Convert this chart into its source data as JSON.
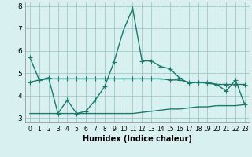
{
  "x": [
    0,
    1,
    2,
    3,
    4,
    5,
    6,
    7,
    8,
    9,
    10,
    11,
    12,
    13,
    14,
    15,
    16,
    17,
    18,
    19,
    20,
    21,
    22,
    23
  ],
  "line1": [
    5.7,
    4.7,
    4.8,
    3.2,
    3.8,
    3.2,
    3.3,
    3.8,
    4.4,
    5.5,
    6.9,
    7.9,
    5.55,
    5.55,
    5.3,
    5.2,
    4.8,
    4.55,
    4.6,
    4.6,
    4.5,
    4.2,
    4.7,
    3.6
  ],
  "line2": [
    4.6,
    4.7,
    4.75,
    4.75,
    4.75,
    4.75,
    4.75,
    4.75,
    4.75,
    4.75,
    4.75,
    4.75,
    4.75,
    4.75,
    4.75,
    4.7,
    4.7,
    4.6,
    4.6,
    4.55,
    4.5,
    4.5,
    4.5,
    4.5
  ],
  "line3": [
    3.2,
    3.2,
    3.2,
    3.2,
    3.2,
    3.2,
    3.2,
    3.2,
    3.2,
    3.2,
    3.2,
    3.2,
    3.25,
    3.3,
    3.35,
    3.4,
    3.4,
    3.45,
    3.5,
    3.5,
    3.55,
    3.55,
    3.55,
    3.6
  ],
  "line_color": "#1a7a6e",
  "bg_color": "#d8f0f0",
  "grid_color": "#a0c8c8",
  "xlabel": "Humidex (Indice chaleur)",
  "ylim": [
    2.8,
    8.2
  ],
  "xlim": [
    -0.5,
    23.5
  ],
  "yticks": [
    3,
    4,
    5,
    6,
    7,
    8
  ],
  "xticks": [
    0,
    1,
    2,
    3,
    4,
    5,
    6,
    7,
    8,
    9,
    10,
    11,
    12,
    13,
    14,
    15,
    16,
    17,
    18,
    19,
    20,
    21,
    22,
    23
  ],
  "marker": "+",
  "markersize": 4,
  "linewidth": 1.0
}
